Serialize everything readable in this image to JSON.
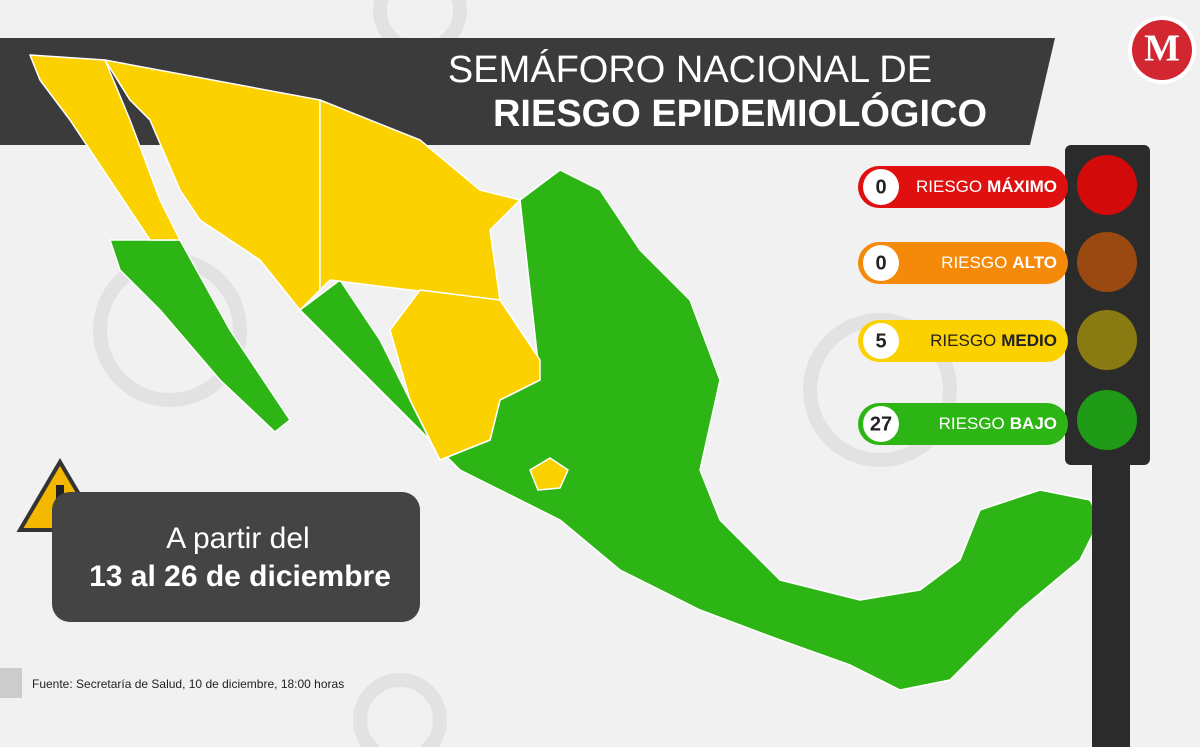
{
  "header": {
    "title_line1": "SEMÁFORO NACIONAL DE",
    "title_line2": "RIESGO EPIDEMIOLÓGICO"
  },
  "logo": "M",
  "legend": [
    {
      "count": 0,
      "label": "RIESGO",
      "level": "MÁXIMO"
    },
    {
      "count": 0,
      "label": "RIESGO",
      "level": "ALTO"
    },
    {
      "count": 5,
      "label": "RIESGO",
      "level": "MEDIO"
    },
    {
      "count": 27,
      "label": "RIESGO",
      "level": "BAJO"
    }
  ],
  "notice": {
    "line1": "A partir del",
    "line2": "13 al 26 de diciembre"
  },
  "source": "Fuente: Secretaría de Salud, 10 de diciembre, 18:00 horas"
}
